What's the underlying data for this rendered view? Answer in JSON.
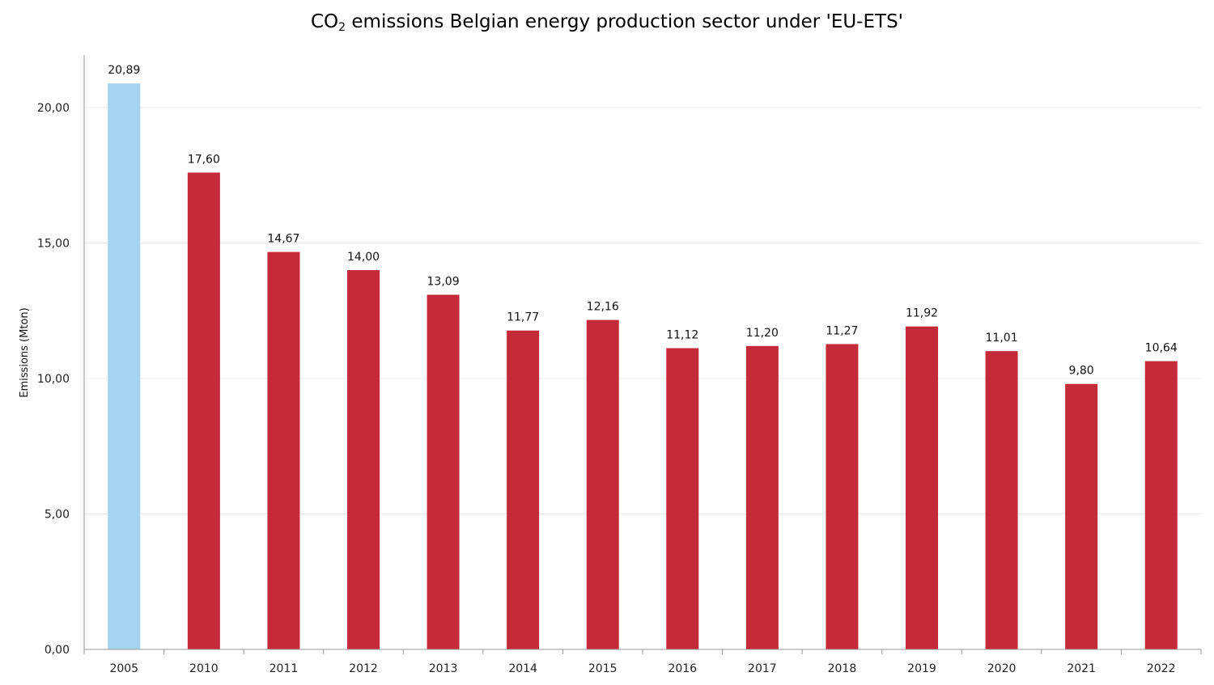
{
  "title": {
    "prefix": "CO",
    "subscript": "2",
    "suffix": " emissions Belgian energy production sector under 'EU-ETS'"
  },
  "colors": {
    "baseline_bar": "#a5d4f0",
    "bar": "#c52a38",
    "grid": "#ececec",
    "axis": "#999999"
  },
  "chart_data": {
    "type": "bar",
    "title": "CO2 emissions Belgian energy production sector under 'EU-ETS'",
    "xlabel": "",
    "ylabel": "Emissions (Mton)",
    "ylim": [
      0,
      22
    ],
    "yticks": [
      0,
      5,
      10,
      15,
      20
    ],
    "ytick_labels": [
      "0,00",
      "5,00",
      "10,00",
      "15,00",
      "20,00"
    ],
    "categories": [
      "2005",
      "2010",
      "2011",
      "2012",
      "2013",
      "2014",
      "2015",
      "2016",
      "2017",
      "2018",
      "2019",
      "2020",
      "2021",
      "2022"
    ],
    "values": [
      20.89,
      17.6,
      14.67,
      14.0,
      13.09,
      11.77,
      12.16,
      11.12,
      11.2,
      11.27,
      11.92,
      11.01,
      9.8,
      10.64
    ],
    "value_labels": [
      "20,89",
      "17,60",
      "14,67",
      "14,00",
      "13,09",
      "11,77",
      "12,16",
      "11,12",
      "11,20",
      "11,27",
      "11,92",
      "11,01",
      "9,80",
      "10,64"
    ],
    "bar_colors": [
      "#a5d4f0",
      "#c52a38",
      "#c52a38",
      "#c52a38",
      "#c52a38",
      "#c52a38",
      "#c52a38",
      "#c52a38",
      "#c52a38",
      "#c52a38",
      "#c52a38",
      "#c52a38",
      "#c52a38",
      "#c52a38"
    ],
    "grid": true,
    "legend": "none"
  }
}
